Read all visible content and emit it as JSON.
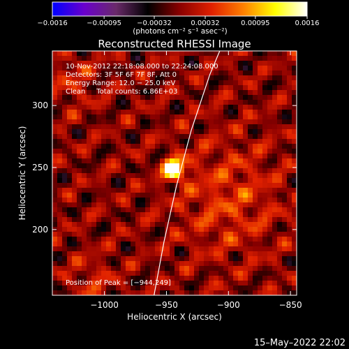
{
  "chart_data": {
    "type": "heatmap",
    "title": "Reconstructed RHESSI Image",
    "xlabel": "Heliocentric X (arcsec)",
    "ylabel": "Heliocentric Y (arcsec)",
    "xlim": [
      -1042,
      -845
    ],
    "ylim": [
      147,
      344
    ],
    "xticks": [
      -1000,
      -950,
      -900,
      -850
    ],
    "xtick_labels": [
      "−1000",
      "−950",
      "−900",
      "−850"
    ],
    "yticks": [
      200,
      250,
      300
    ],
    "ytick_labels": [
      "200",
      "250",
      "300"
    ],
    "colorbar": {
      "min": -0.0016,
      "max": 0.0016,
      "ticks": [
        -0.0016,
        -0.00095,
        -0.00032,
        0.00032,
        0.00095,
        0.0016
      ],
      "tick_labels": [
        "−0.0016",
        "−0.00095",
        "−0.00032",
        "0.00032",
        "0.00095",
        "0.0016"
      ],
      "unit_label": "(photons cm⁻² s⁻¹ asec⁻²)",
      "colors": [
        "#0000ff",
        "#6a00cc",
        "#6a2a6a",
        "#000000",
        "#8a0000",
        "#e02000",
        "#ff8000",
        "#ffff00",
        "#ffffff"
      ]
    },
    "annotations": {
      "time_range": "10-Nov-2012 22:18:08.000 to 22:24:08.000",
      "detectors": "Detectors: 3F 5F 6F 7F 8F, Att 0",
      "energy_range": "Energy Range: 12.0 − 25.0 keV",
      "clean_counts": "Clean     Total counts: 6.86E+03",
      "peak_position": "Position of Peak = [−944,249]"
    },
    "peak": {
      "x": -944,
      "y": 249
    },
    "limb_curve": [
      [
        -960,
        147
      ],
      [
        -952,
        190
      ],
      [
        -942,
        235
      ],
      [
        -930,
        280
      ],
      [
        -915,
        325
      ],
      [
        -907,
        344
      ]
    ],
    "footer_date": "15–May–2022 22:02"
  }
}
